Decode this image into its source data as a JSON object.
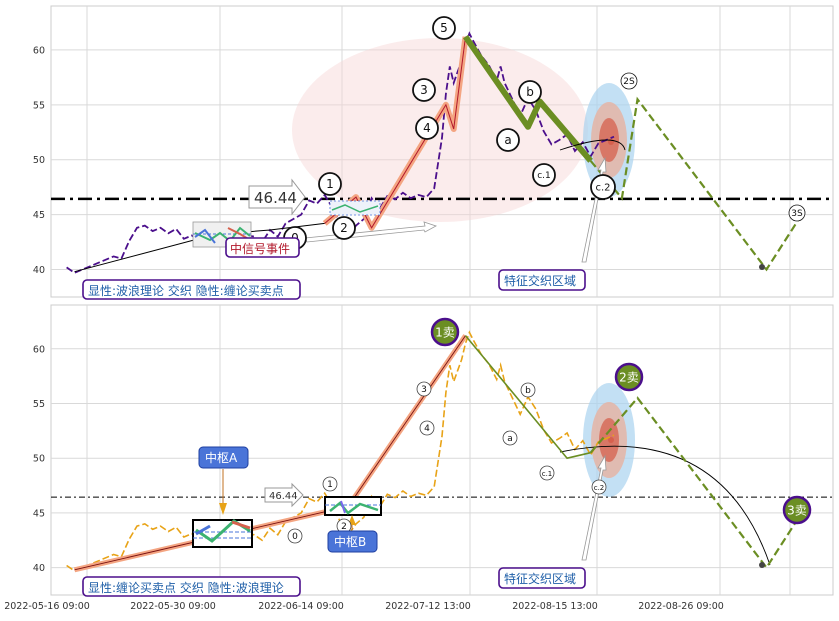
{
  "chart_data": [
    {
      "type": "line",
      "panel": "top",
      "ylim": [
        37.5,
        64
      ],
      "yticks": [
        40,
        45,
        50,
        55,
        60
      ],
      "xlim": [
        0,
        100
      ],
      "grid": true,
      "price_series": [
        [
          2,
          40.2
        ],
        [
          3,
          39.7
        ],
        [
          5,
          40.3
        ],
        [
          8,
          41.2
        ],
        [
          9,
          41
        ],
        [
          10,
          42.6
        ],
        [
          11,
          43.8
        ],
        [
          12,
          44
        ],
        [
          13,
          43.5
        ],
        [
          14,
          43.8
        ],
        [
          15,
          43.3
        ],
        [
          16,
          43.7
        ],
        [
          17,
          42.8
        ],
        [
          18,
          43.1
        ],
        [
          19,
          42.6
        ],
        [
          20,
          43.5
        ],
        [
          22,
          42.3
        ],
        [
          24,
          43.2
        ],
        [
          26,
          43
        ],
        [
          27,
          42.5
        ],
        [
          28,
          43.6
        ],
        [
          29,
          43
        ],
        [
          30,
          44.2
        ],
        [
          31,
          44.6
        ],
        [
          32,
          45
        ],
        [
          33,
          46.3
        ],
        [
          34,
          46
        ],
        [
          35,
          46.8
        ],
        [
          36,
          45.6
        ],
        [
          37,
          44.2
        ],
        [
          38,
          43
        ],
        [
          39,
          44
        ],
        [
          40,
          44.6
        ],
        [
          41,
          46.5
        ],
        [
          42,
          45.5
        ],
        [
          43,
          46.7
        ],
        [
          44,
          46.4
        ],
        [
          45,
          47
        ],
        [
          46,
          46.5
        ],
        [
          47,
          46.8
        ],
        [
          48,
          46.6
        ],
        [
          49,
          47.4
        ],
        [
          50,
          52
        ],
        [
          50.5,
          56
        ],
        [
          51,
          58.5
        ],
        [
          51.5,
          57
        ],
        [
          52,
          58
        ],
        [
          52.5,
          59
        ],
        [
          53,
          60.5
        ],
        [
          53.5,
          61.5
        ],
        [
          54,
          60.8
        ],
        [
          55,
          59.5
        ],
        [
          56,
          58.6
        ],
        [
          57,
          57.2
        ],
        [
          57.5,
          58.5
        ],
        [
          58,
          57
        ],
        [
          59,
          55.5
        ],
        [
          60,
          54
        ],
        [
          61,
          55.6
        ],
        [
          62,
          54.5
        ],
        [
          63,
          52.6
        ],
        [
          64,
          51.4
        ],
        [
          65,
          51.8
        ],
        [
          66,
          52.3
        ],
        [
          67,
          50.8
        ],
        [
          68,
          51.6
        ],
        [
          69,
          50.3
        ],
        [
          70,
          51.5
        ],
        [
          71,
          51.8
        ],
        [
          72,
          52.1
        ]
      ],
      "wave_path": [
        [
          3,
          39.8
        ],
        [
          21,
          43.2
        ],
        [
          35,
          44.2
        ],
        [
          39,
          46.6
        ],
        [
          41,
          43.8
        ],
        [
          50.5,
          55
        ],
        [
          51.5,
          52.8
        ],
        [
          53,
          61.2
        ],
        [
          61,
          53
        ],
        [
          62.5,
          55.3
        ],
        [
          69,
          49.9
        ],
        [
          73,
          46.5
        ],
        [
          75,
          55.5
        ],
        [
          91.5,
          40
        ],
        [
          96,
          45
        ]
      ],
      "zhongshu_box": {
        "x": [
          23,
          30
        ],
        "y": [
          42,
          44.4
        ]
      },
      "annotations": {
        "price_label": "46.44",
        "event_label": "中信号事件",
        "zone_label": "特征交织区域",
        "legend_caption": "显性:波浪理论 交织 隐性:缠论买卖点",
        "wave_labels": [
          "1",
          "2",
          "3",
          "4",
          "5",
          "0",
          "a",
          "b",
          "c.1",
          "c.2",
          "2S",
          "3S"
        ]
      },
      "level_line": 46.44
    },
    {
      "type": "line",
      "panel": "bottom",
      "ylim": [
        37.5,
        64
      ],
      "yticks": [
        40,
        45,
        50,
        55,
        60
      ],
      "xlim": [
        0,
        100
      ],
      "grid": true,
      "x_tick_labels": [
        "2022-05-16 09:00",
        "2022-05-30 09:00",
        "2022-06-14 09:00",
        "2022-07-12 13:00",
        "2022-08-15 13:00",
        "2022-08-26 09:00"
      ],
      "price_series": [
        [
          2,
          40.2
        ],
        [
          3,
          39.7
        ],
        [
          5,
          40.3
        ],
        [
          8,
          41.2
        ],
        [
          9,
          41
        ],
        [
          10,
          42.6
        ],
        [
          11,
          43.8
        ],
        [
          12,
          44
        ],
        [
          13,
          43.5
        ],
        [
          14,
          43.8
        ],
        [
          15,
          43.3
        ],
        [
          16,
          43.7
        ],
        [
          17,
          42.8
        ],
        [
          18,
          43.1
        ],
        [
          19,
          42.6
        ],
        [
          20,
          43.5
        ],
        [
          22,
          42.3
        ],
        [
          24,
          43.2
        ],
        [
          26,
          43
        ],
        [
          27,
          42.5
        ],
        [
          28,
          43.6
        ],
        [
          29,
          43
        ],
        [
          30,
          44.2
        ],
        [
          31,
          44.6
        ],
        [
          32,
          45
        ],
        [
          33,
          46.3
        ],
        [
          34,
          46
        ],
        [
          35,
          46.8
        ],
        [
          36,
          45.6
        ],
        [
          37,
          44.2
        ],
        [
          38,
          43
        ],
        [
          39,
          44
        ],
        [
          40,
          44.6
        ],
        [
          41,
          46.5
        ],
        [
          42,
          45.5
        ],
        [
          43,
          46.7
        ],
        [
          44,
          46.4
        ],
        [
          45,
          47
        ],
        [
          46,
          46.5
        ],
        [
          47,
          46.8
        ],
        [
          48,
          46.6
        ],
        [
          49,
          47.4
        ],
        [
          50,
          52
        ],
        [
          50.5,
          56
        ],
        [
          51,
          58.5
        ],
        [
          51.5,
          57
        ],
        [
          52,
          58
        ],
        [
          52.5,
          59
        ],
        [
          53,
          60.5
        ],
        [
          53.5,
          61.5
        ],
        [
          54,
          60.8
        ],
        [
          55,
          59.5
        ],
        [
          56,
          58.6
        ],
        [
          57,
          57.2
        ],
        [
          57.5,
          58.5
        ],
        [
          58,
          57
        ],
        [
          59,
          55.5
        ],
        [
          60,
          54
        ],
        [
          61,
          55.6
        ],
        [
          62,
          54.5
        ],
        [
          63,
          52.6
        ],
        [
          64,
          51.4
        ],
        [
          65,
          51.8
        ],
        [
          66,
          52.3
        ],
        [
          67,
          50.8
        ],
        [
          68,
          51.6
        ],
        [
          69,
          50.3
        ],
        [
          70,
          51.5
        ],
        [
          71,
          51.8
        ],
        [
          72,
          52.1
        ]
      ],
      "bi_path": [
        [
          3,
          39.8
        ],
        [
          38,
          45.6
        ],
        [
          53,
          61.2
        ],
        [
          66,
          50
        ],
        [
          69,
          50.5
        ],
        [
          75,
          55.5
        ],
        [
          91.5,
          40
        ],
        [
          96,
          45
        ]
      ],
      "zhongshu_boxes": [
        {
          "name": "中枢A",
          "x": [
            23,
            30
          ],
          "y": [
            41.8,
            44.3
          ]
        },
        {
          "name": "中枢B",
          "x": [
            39,
            45.5
          ],
          "y": [
            44.7,
            46.4
          ]
        }
      ],
      "annotations": {
        "price_label": "46.44",
        "zone_label": "特征交织区域",
        "legend_caption": "显性:缠论买卖点 交织 隐性:波浪理论",
        "sell_points": [
          "1卖",
          "2卖",
          "3卖"
        ],
        "small_labels": [
          "1",
          "2",
          "3",
          "4",
          "0",
          "a",
          "b",
          "c.1",
          "c.2"
        ]
      },
      "level_line": 46.44
    }
  ],
  "colors": {
    "price_top": "#4b0f8c",
    "price_bottom": "#e8a317",
    "wave_green": "#6b8e23",
    "wave_salmon": "#f4a582",
    "sell_point": "#6b8e23",
    "zone_blue": "#a9d3f0",
    "legend_border": "#4b0f8c",
    "legend_text": "#1f5fa8",
    "event_text": "#b2182b",
    "zhongshu_bg": "#4a74d8"
  }
}
